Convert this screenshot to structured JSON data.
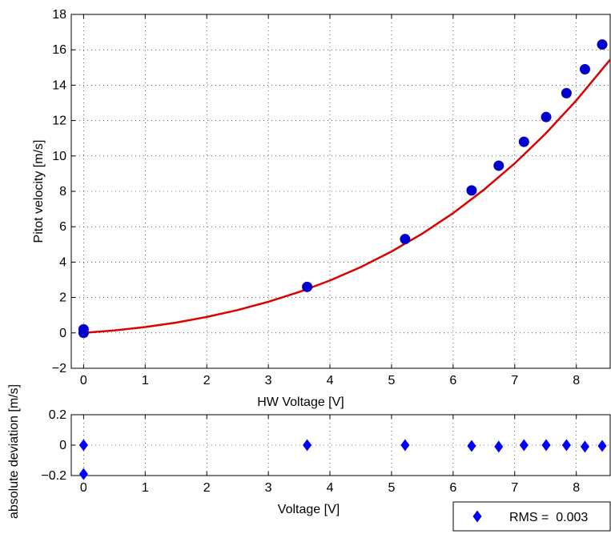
{
  "chart_data": [
    {
      "type": "scatter",
      "xlabel": "HW Voltage [V]",
      "ylabel": "Pitot velocity [m/s]",
      "xlim": [
        -0.2,
        8.55
      ],
      "ylim": [
        -2,
        18
      ],
      "xticks": [
        0,
        1,
        2,
        3,
        4,
        5,
        6,
        7,
        8
      ],
      "yticks": [
        -2,
        0,
        2,
        4,
        6,
        8,
        10,
        12,
        14,
        16,
        18
      ],
      "tick_labels_x": [
        "0",
        "1",
        "2",
        "3",
        "4",
        "5",
        "6",
        "7",
        "8"
      ],
      "tick_labels_y": [
        "−2",
        "0",
        "2",
        "4",
        "6",
        "8",
        "10",
        "12",
        "14",
        "16",
        "18"
      ],
      "grid": true,
      "series": [
        {
          "kind": "points",
          "color": "#0000cc",
          "marker": "circle",
          "x": [
            0.0,
            0.0,
            3.63,
            5.22,
            6.3,
            6.74,
            7.15,
            7.51,
            7.84,
            8.14,
            8.42
          ],
          "y": [
            0.2,
            0.0,
            2.6,
            5.3,
            8.05,
            9.45,
            10.8,
            12.2,
            13.55,
            14.9,
            16.3
          ]
        },
        {
          "kind": "curve",
          "color": "#dd0000",
          "x": [
            0,
            0.5,
            1,
            1.5,
            2,
            2.5,
            3,
            3.5,
            4,
            4.5,
            5,
            5.5,
            6,
            6.5,
            7,
            7.5,
            8,
            8.55
          ],
          "y": [
            0,
            0.14,
            0.33,
            0.58,
            0.9,
            1.29,
            1.76,
            2.31,
            2.96,
            3.72,
            4.6,
            5.61,
            6.77,
            8.09,
            9.58,
            11.26,
            13.14,
            15.45
          ]
        }
      ]
    },
    {
      "type": "scatter",
      "xlabel": "Voltage [V]",
      "ylabel": "absolute deviation [m/s]",
      "xlim": [
        -0.2,
        8.55
      ],
      "ylim": [
        -0.2,
        0.2
      ],
      "xticks": [
        0,
        1,
        2,
        3,
        4,
        5,
        6,
        7,
        8
      ],
      "yticks": [
        -0.2,
        0,
        0.2
      ],
      "tick_labels_x": [
        "0",
        "1",
        "2",
        "3",
        "4",
        "5",
        "6",
        "7",
        "8"
      ],
      "tick_labels_y": [
        "−0.2",
        "0",
        "0.2"
      ],
      "grid": true,
      "legend": {
        "label": "RMS =  0.003",
        "placement": "bottom-right"
      },
      "series": [
        {
          "kind": "points",
          "name": "RMS =  0.003",
          "color": "#0000ff",
          "marker": "diamond",
          "x": [
            0.0,
            0.0,
            3.63,
            5.22,
            6.3,
            6.74,
            7.15,
            7.51,
            7.84,
            8.14,
            8.42
          ],
          "y": [
            0.0,
            -0.19,
            0.0,
            0.0,
            -0.005,
            -0.01,
            0.0,
            0.0,
            0.0,
            -0.01,
            -0.005
          ]
        }
      ]
    }
  ]
}
